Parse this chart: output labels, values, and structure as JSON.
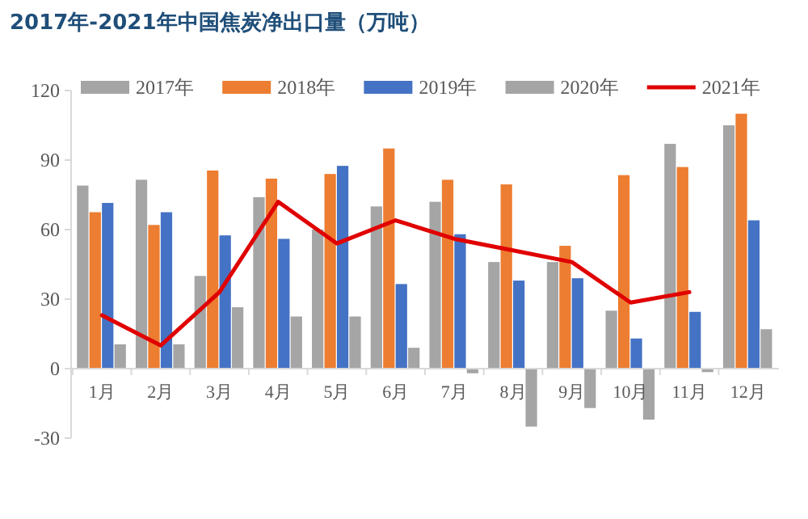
{
  "chart_data": {
    "type": "bar",
    "title": "2017年-2021年中国焦炭净出口量（万吨）",
    "categories": [
      "1月",
      "2月",
      "3月",
      "4月",
      "5月",
      "6月",
      "7月",
      "8月",
      "9月",
      "10月",
      "11月",
      "12月"
    ],
    "series": [
      {
        "name": "2017年",
        "color": "#a5a5a5",
        "values": [
          79,
          81.5,
          40,
          74,
          60,
          70,
          72,
          46,
          46,
          25,
          97,
          105
        ]
      },
      {
        "name": "2018年",
        "color": "#ed7d31",
        "values": [
          67.5,
          62,
          85.5,
          82,
          84,
          95,
          81.5,
          79.5,
          53,
          83.5,
          87,
          110
        ]
      },
      {
        "name": "2019年",
        "color": "#4472c4",
        "values": [
          71.5,
          67.5,
          57.5,
          56,
          87.5,
          36.5,
          58,
          38,
          39,
          13,
          24.5,
          64
        ]
      },
      {
        "name": "2020年",
        "color": "#a5a5a5",
        "values": [
          10.5,
          10.5,
          26.5,
          22.5,
          22.5,
          9,
          -2,
          -25,
          -17,
          -22,
          -1.5,
          17
        ]
      },
      {
        "name": "2021年",
        "type": "line",
        "color": "#e00000",
        "values": [
          23,
          10,
          33,
          72,
          54,
          64,
          56,
          51,
          46,
          28.5,
          33,
          null
        ]
      }
    ],
    "ylim": [
      -30,
      120
    ],
    "yticks": [
      -30,
      0,
      30,
      60,
      90,
      120
    ],
    "legend": "top",
    "grid": false
  }
}
